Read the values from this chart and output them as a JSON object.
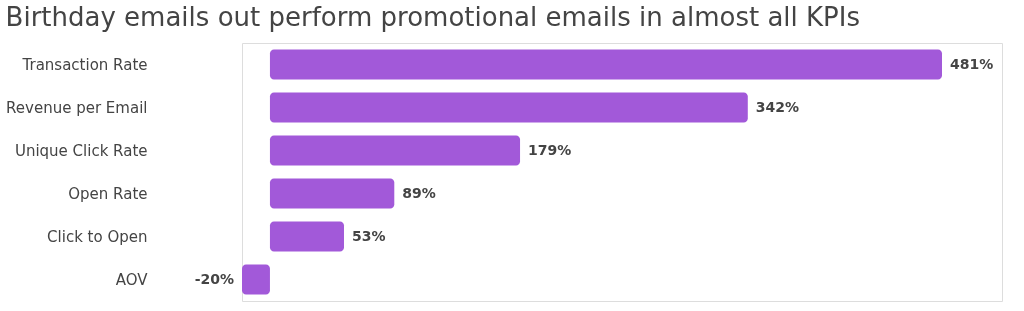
{
  "chart_data": {
    "type": "bar",
    "orientation": "horizontal",
    "title": "Birthday emails out perform promotional emails in almost all KPIs",
    "categories": [
      "Transaction Rate",
      "Revenue per Email",
      "Unique Click Rate",
      "Open Rate",
      "Click to Open",
      "AOV"
    ],
    "values": [
      481,
      342,
      179,
      89,
      53,
      -20
    ],
    "value_labels": [
      "481%",
      "342%",
      "179%",
      "89%",
      "53%",
      "-20%"
    ],
    "color": "#a259d9",
    "grid": false
  }
}
